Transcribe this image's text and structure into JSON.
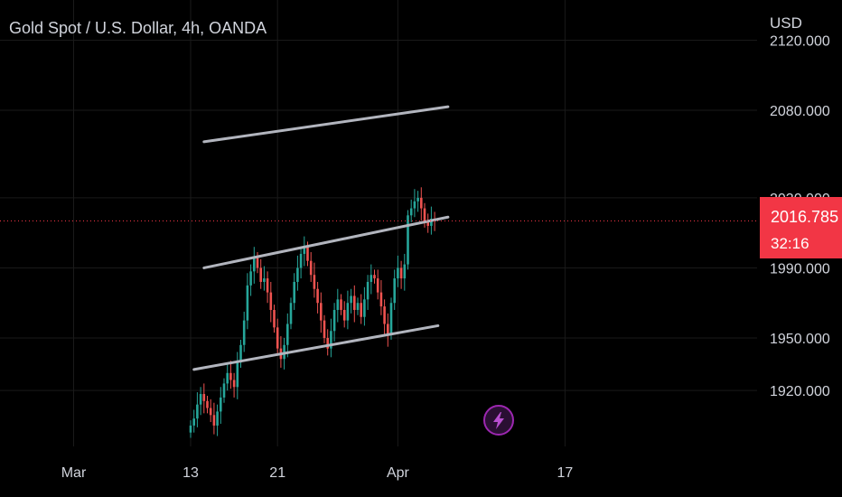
{
  "header": {
    "symbol_title": "Gold Spot / U.S. Dollar, 4h, OANDA",
    "currency": "USD"
  },
  "price_badge": {
    "price": "2016.785",
    "countdown": "32:16"
  },
  "colors": {
    "background": "#000000",
    "up_candle": "#26a69a",
    "down_candle": "#ef5350",
    "channel_line": "#b2b5be",
    "price_line": "#f23645",
    "grid": "#1a1a1a",
    "axis_text": "#d1d4dc",
    "flash_accent": "#9c27b0"
  },
  "icons": {
    "flash": "lightning-bolt-icon"
  },
  "chart_data": {
    "type": "candlestick",
    "symbol": "XAUUSD",
    "timeframe": "4h",
    "y_axis": {
      "range": [
        1895,
        2130
      ],
      "tick_labels": [
        "1920.000",
        "1950.000",
        "1990.000",
        "2030.000",
        "2080.000",
        "2120.000"
      ],
      "tick_values": [
        1920,
        1950,
        1990,
        2030,
        2080,
        2120
      ]
    },
    "x_axis": {
      "tick_labels": [
        "Mar",
        "13",
        "21",
        "Apr",
        "17"
      ],
      "tick_bars": [
        -35,
        0,
        26,
        62,
        112
      ]
    },
    "last_price": 2016.785,
    "closes": [
      1900,
      1904,
      1912,
      1918,
      1914,
      1910,
      1906,
      1900,
      1908,
      1916,
      1924,
      1930,
      1926,
      1922,
      1936,
      1946,
      1960,
      1980,
      1988,
      1996,
      1990,
      1982,
      1984,
      1976,
      1966,
      1956,
      1944,
      1938,
      1946,
      1958,
      1970,
      1982,
      1990,
      1998,
      2002,
      1994,
      1986,
      1978,
      1970,
      1960,
      1950,
      1944,
      1954,
      1966,
      1972,
      1966,
      1960,
      1970,
      1974,
      1966,
      1970,
      1962,
      1972,
      1982,
      1986,
      1984,
      1976,
      1968,
      1958,
      1952,
      1970,
      1984,
      1990,
      1984,
      1992,
      2020,
      2024,
      2028,
      2030,
      2024,
      2016,
      2014,
      2018,
      2017
    ],
    "channel_lines": [
      {
        "name": "upper",
        "start_bar": 4,
        "start_price": 2062,
        "end_bar": 77,
        "end_price": 2082
      },
      {
        "name": "middle",
        "start_bar": 4,
        "start_price": 1990,
        "end_bar": 77,
        "end_price": 2019
      },
      {
        "name": "lower",
        "start_bar": 1,
        "start_price": 1932,
        "end_bar": 74,
        "end_price": 1957
      }
    ],
    "grid": true,
    "legend": "none"
  }
}
